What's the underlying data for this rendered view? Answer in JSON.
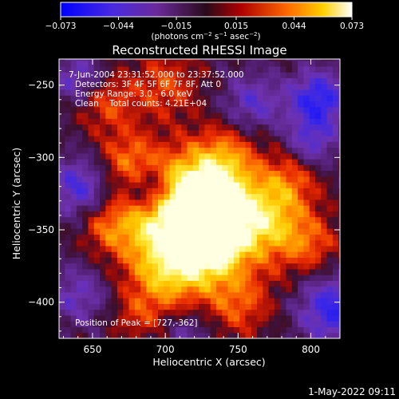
{
  "chart_data": {
    "type": "heatmap",
    "title": "Reconstructed RHESSI Image",
    "xlabel": "Heliocentric X (arcsec)",
    "ylabel": "Heliocentric Y (arcsec)",
    "xlim": [
      627,
      820
    ],
    "ylim": [
      -425,
      -232
    ],
    "x_ticks": [
      650,
      700,
      750,
      800
    ],
    "x_tick_labels": [
      "650",
      "700",
      "750",
      "800"
    ],
    "y_ticks": [
      -250,
      -300,
      -350,
      -400
    ],
    "y_tick_labels": [
      "−250",
      "−300",
      "−350",
      "−400"
    ],
    "annotations": [
      "7-Jun-2004 23:31:52.000 to 23:37:52.000",
      "Detectors: 3F 4F 5F 6F 7F 8F, Att 0",
      "Energy Range: 3.0 - 6.0 keV",
      "Clean    Total counts: 4.21E+04"
    ],
    "peak_label": "Position of Peak = [727,-362]",
    "peak": [
      727,
      -362
    ],
    "colorbar": {
      "range": [
        -0.073,
        0.073
      ],
      "tick_values": [
        -0.073,
        -0.044,
        -0.015,
        0.015,
        0.044,
        0.073
      ],
      "tick_labels": [
        "−0.073",
        "−0.044",
        "−0.015",
        "0.015",
        "0.044",
        "0.073"
      ],
      "unit_main": "(photons cm",
      "unit_sup1": "−2",
      "unit_mid": " s",
      "unit_sup2": "−1",
      "unit_mid2": " asec",
      "unit_sup3": "−2",
      "unit_end": ")"
    },
    "colors": {
      "background": "#000000",
      "negative_strong": "#1010ff",
      "negative_weak": "#7a3ab8",
      "neutral": "#3c1a4a",
      "weak_positive": "#b3121a",
      "mid_positive": "#ff5a00",
      "strong_positive": "#ffcc00",
      "max_positive": "#ffffe0"
    }
  },
  "footer": {
    "timestamp": "1-May-2022 09:11"
  }
}
